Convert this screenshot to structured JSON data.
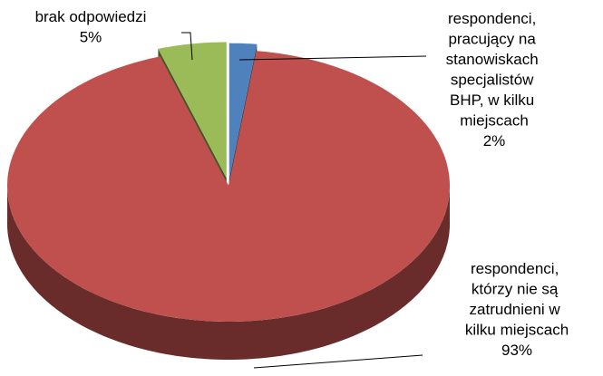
{
  "chart_data": {
    "type": "pie",
    "categories": [
      "respondenci, pracujący na stanowiskach specjalistów BHP, w kilku miejscach",
      "respondenci, którzy nie są zatrudnieni w kilku miejscach",
      "brak odpowiedzi"
    ],
    "values": [
      2,
      93,
      5
    ],
    "value_labels": [
      "2%",
      "93%",
      "5%"
    ],
    "colors": [
      "#4f81bd",
      "#c0504d",
      "#9bbb59"
    ]
  }
}
